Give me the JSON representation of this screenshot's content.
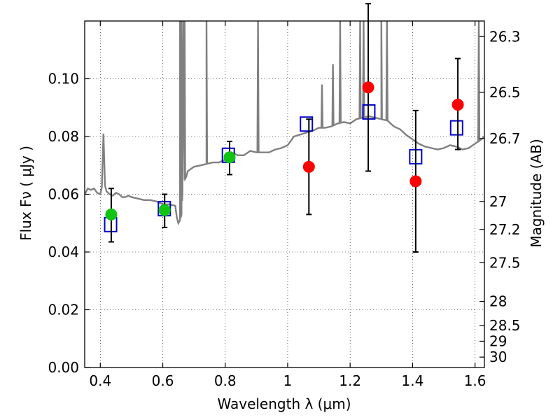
{
  "chart_data": {
    "type": "scatter",
    "xlabel": "Wavelength  λ (μm)",
    "ylabel": "Flux  Fν  ( μJy )",
    "y2label": "Magnitude (AB)",
    "xlim": [
      0.35,
      1.63
    ],
    "ylim": [
      0.0,
      0.12
    ],
    "grid": true,
    "x_ticks": [
      0.4,
      0.6,
      0.8,
      1.0,
      1.2,
      1.4,
      1.6
    ],
    "x_tick_labels": [
      "0.4",
      "0.6",
      "0.8",
      "1",
      "1.2",
      "1.4",
      "1.6"
    ],
    "y_ticks": [
      0.0,
      0.02,
      0.04,
      0.06,
      0.08,
      0.1
    ],
    "y_tick_labels": [
      "0.00",
      "0.02",
      "0.04",
      "0.06",
      "0.08",
      "0.10"
    ],
    "y2_tick_labels": [
      "26.3",
      "26.5",
      "26.7",
      "27",
      "27.2",
      "27.5",
      "28",
      "28.5",
      "29",
      "30"
    ],
    "y2_tick_flux": [
      0.1146,
      0.0953,
      0.0793,
      0.0575,
      0.0478,
      0.0363,
      0.0229,
      0.0145,
      0.0091,
      0.0036
    ],
    "series": [
      {
        "marker": "circle",
        "color": "#11c411",
        "x": [
          0.435,
          0.606,
          0.814
        ],
        "y": [
          0.053,
          0.0545,
          0.0728
        ],
        "yerr_low": [
          0.0095,
          0.006,
          0.006
        ],
        "yerr_high": [
          0.009,
          0.0055,
          0.0055
        ]
      },
      {
        "marker": "circle",
        "color": "#ff0000",
        "x": [
          1.068,
          1.258,
          1.41,
          1.545
        ],
        "y": [
          0.0695,
          0.097,
          0.0645,
          0.091
        ],
        "yerr_low": [
          0.0165,
          0.029,
          0.0245,
          0.0155
        ],
        "yerr_high": [
          0.0165,
          0.029,
          0.0245,
          0.016
        ]
      },
      {
        "marker": "open-square",
        "color": "#0000cc",
        "x": [
          0.433,
          0.605,
          0.81,
          1.06,
          1.26,
          1.41,
          1.541
        ],
        "y": [
          0.0495,
          0.055,
          0.0735,
          0.0843,
          0.0885,
          0.073,
          0.083
        ]
      },
      {
        "type": "line",
        "color": "#808080",
        "x": [
          0.35,
          0.355,
          0.36,
          0.37,
          0.38,
          0.39,
          0.4,
          0.405,
          0.41,
          0.415,
          0.42,
          0.43,
          0.44,
          0.45,
          0.46,
          0.47,
          0.48,
          0.49,
          0.5,
          0.52,
          0.54,
          0.56,
          0.58,
          0.6,
          0.62,
          0.64,
          0.645,
          0.65,
          0.655,
          0.66,
          0.663,
          0.666,
          0.67,
          0.675,
          0.68,
          0.7,
          0.72,
          0.74,
          0.76,
          0.78,
          0.8,
          0.82,
          0.84,
          0.86,
          0.88,
          0.9,
          0.92,
          0.94,
          0.96,
          0.98,
          1.0,
          1.02,
          1.05,
          1.08,
          1.1,
          1.12,
          1.14,
          1.16,
          1.18,
          1.2,
          1.22,
          1.24,
          1.26,
          1.28,
          1.3,
          1.32,
          1.34,
          1.36,
          1.38,
          1.4,
          1.42,
          1.44,
          1.46,
          1.48,
          1.5,
          1.52,
          1.54,
          1.56,
          1.58,
          1.6,
          1.62,
          1.63
        ],
        "y": [
          0.06,
          0.061,
          0.062,
          0.0615,
          0.062,
          0.0605,
          0.06,
          0.0625,
          0.081,
          0.063,
          0.061,
          0.06,
          0.0595,
          0.0605,
          0.06,
          0.059,
          0.059,
          0.0595,
          0.059,
          0.0585,
          0.058,
          0.058,
          0.0575,
          0.0565,
          0.0565,
          0.056,
          0.052,
          0.05,
          0.051,
          0.053,
          0.06,
          0.12,
          0.065,
          0.066,
          0.068,
          0.0695,
          0.07,
          0.0705,
          0.071,
          0.071,
          0.072,
          0.0745,
          0.0735,
          0.0735,
          0.075,
          0.0745,
          0.0745,
          0.0745,
          0.0755,
          0.076,
          0.077,
          0.08,
          0.081,
          0.082,
          0.083,
          0.083,
          0.0835,
          0.0845,
          0.085,
          0.0845,
          0.086,
          0.0865,
          0.087,
          0.0865,
          0.086,
          0.0855,
          0.0835,
          0.0825,
          0.0805,
          0.079,
          0.0775,
          0.0765,
          0.076,
          0.0755,
          0.076,
          0.077,
          0.0765,
          0.0755,
          0.076,
          0.0775,
          0.079,
          0.08
        ],
        "spikes_x": [
          0.655,
          0.66,
          0.67,
          0.74,
          0.905,
          1.11,
          1.145,
          1.168,
          1.232,
          1.243,
          1.3,
          1.318,
          1.612
        ],
        "spikes_top": [
          0.12,
          0.12,
          0.12,
          0.12,
          0.12,
          0.098,
          0.105,
          0.12,
          0.12,
          0.12,
          0.12,
          0.12,
          0.12
        ]
      }
    ]
  }
}
